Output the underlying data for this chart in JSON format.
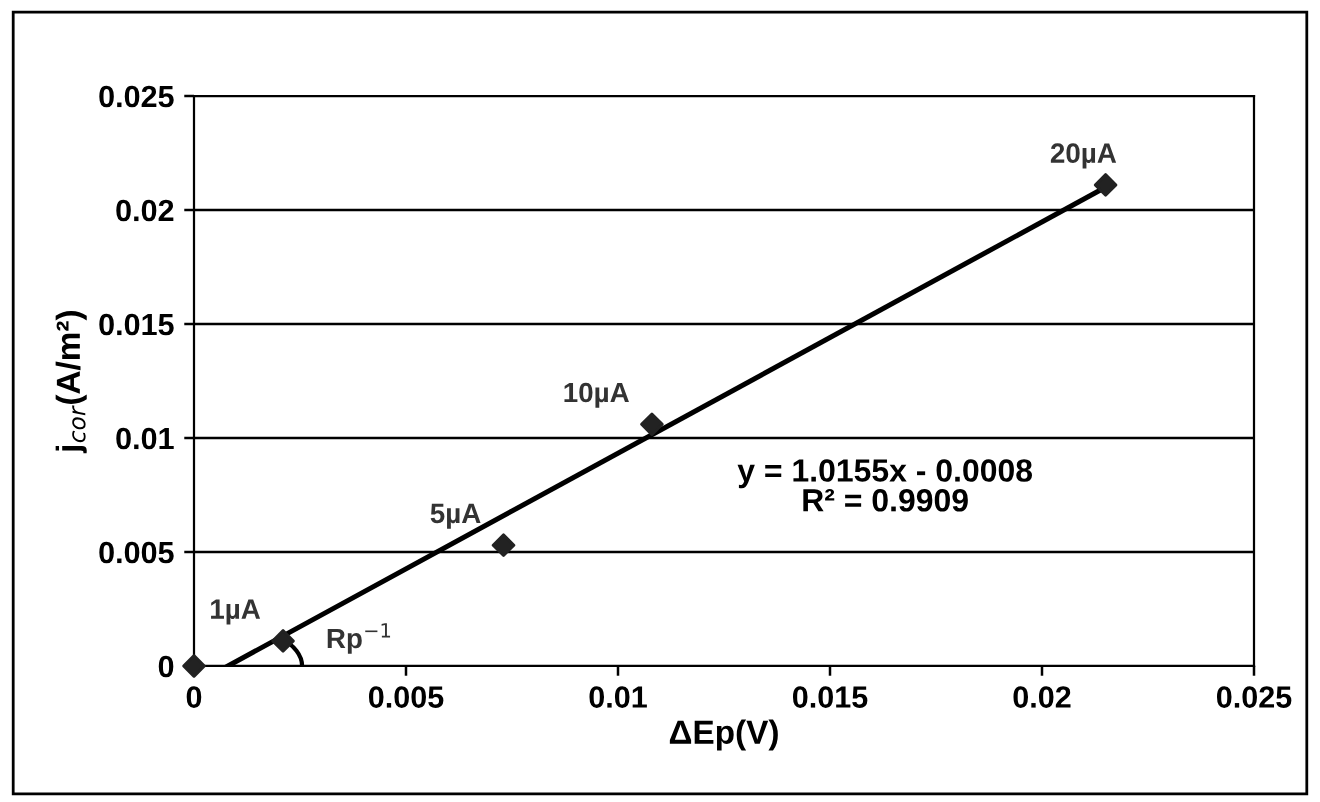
{
  "chart_data": {
    "type": "scatter",
    "xlabel": "ΔEp(V)",
    "ylabel": "j$_{cor}$(A/m²)",
    "xlim": [
      0,
      0.025
    ],
    "ylim": [
      0,
      0.025
    ],
    "xticks": [
      0,
      0.005,
      0.01,
      0.015,
      0.02,
      0.025
    ],
    "yticks": [
      0,
      0.005,
      0.01,
      0.015,
      0.02,
      0.025
    ],
    "grid": "y",
    "legend": false,
    "marker": "diamond",
    "series": [
      {
        "color": "#222222",
        "x": [
          0,
          0.0021,
          0.0073,
          0.0108,
          0.0215
        ],
        "values": [
          0,
          0.0011,
          0.0053,
          0.0106,
          0.0211
        ]
      },
      {
        "type": "line",
        "color": "#000000",
        "x": [
          0.0008,
          0.0215
        ],
        "values": [
          0,
          0.021
        ],
        "marker": "none",
        "line_style": "solid"
      }
    ],
    "annotations": [
      {
        "text": "1µA",
        "x": 0.0021,
        "y": 0.0011
      },
      {
        "text": "5µA",
        "x": 0.0073,
        "y": 0.0053
      },
      {
        "text": "10µA",
        "x": 0.0108,
        "y": 0.0106
      },
      {
        "text": "20µA",
        "x": 0.0215,
        "y": 0.0211
      },
      "y = 1.0155x - 0.0008\nR² = 0.9909",
      "Rp$^{−1}$"
    ]
  }
}
